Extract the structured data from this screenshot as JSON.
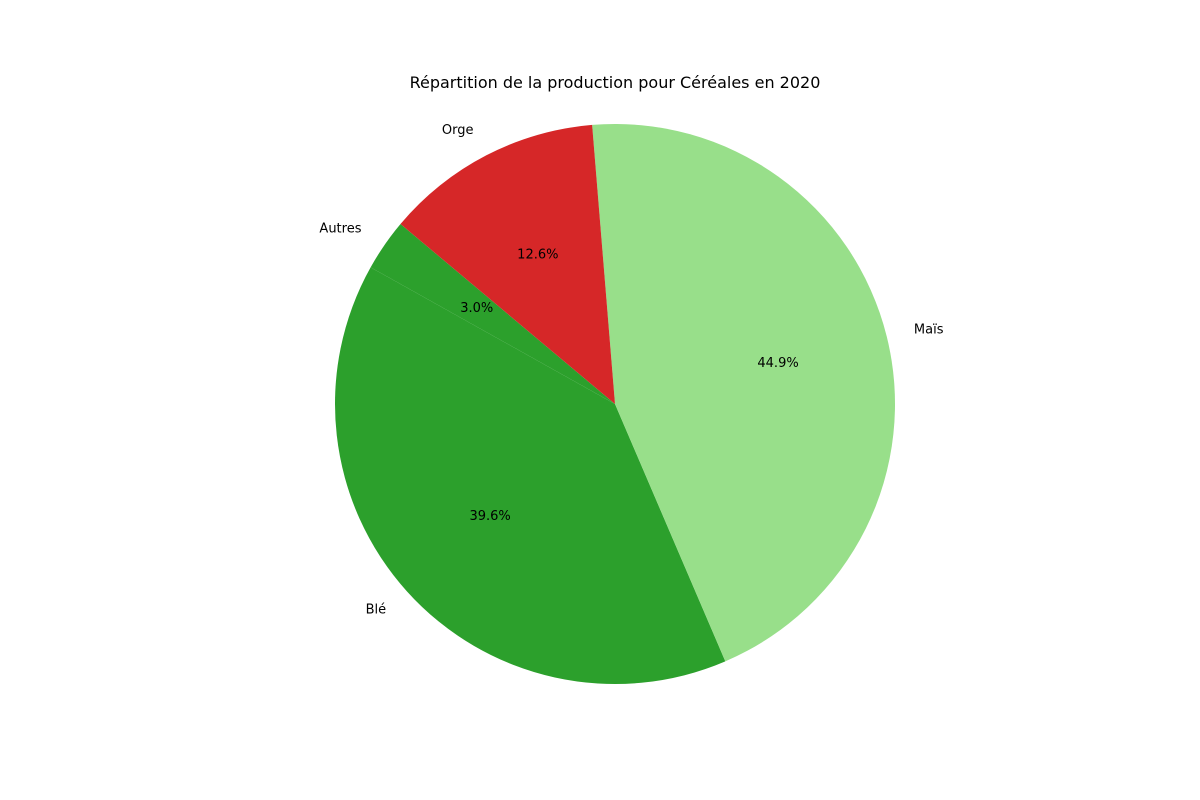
{
  "chart_data": {
    "type": "pie",
    "title": "Répartition de la production pour Céréales en 2020",
    "start_angle_deg": 140,
    "direction": "counterclockwise",
    "slices": [
      {
        "label": "Autres",
        "value": 3.0,
        "pct_text": "3.0%",
        "color": "#2ca02c"
      },
      {
        "label": "Blé",
        "value": 39.6,
        "pct_text": "39.6%",
        "color": "#2ca02c"
      },
      {
        "label": "Maïs",
        "value": 44.9,
        "pct_text": "44.9%",
        "color": "#98df8a"
      },
      {
        "label": "Orge",
        "value": 12.6,
        "pct_text": "12.6%",
        "color": "#d62728"
      }
    ]
  }
}
